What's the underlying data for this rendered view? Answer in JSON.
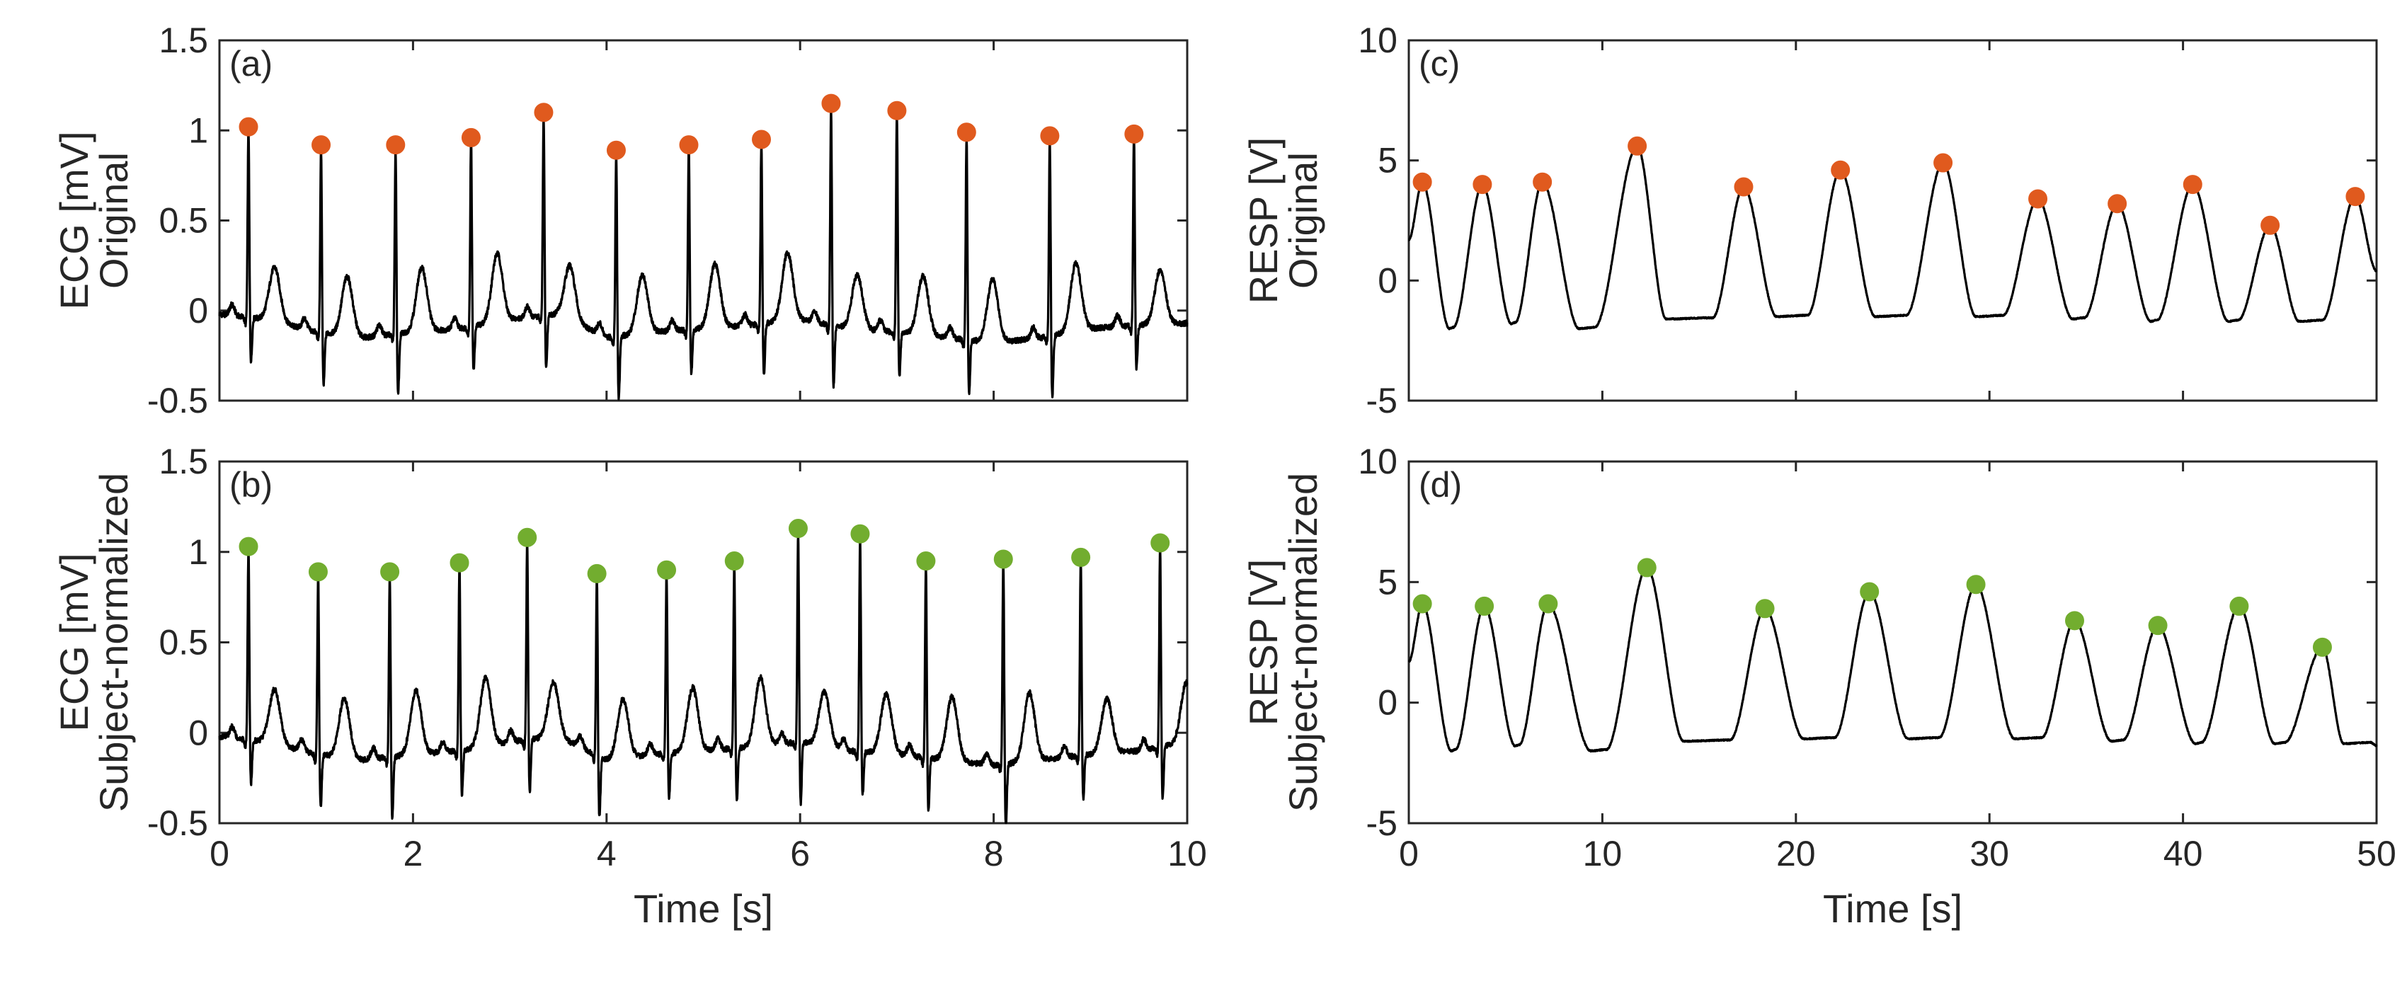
{
  "chart_data": [
    {
      "id": "a",
      "type": "line",
      "panel_label": "(a)",
      "ylabel_lines": [
        "ECG [mV]",
        "Original"
      ],
      "xlabel": "",
      "xlim": [
        0,
        10
      ],
      "ylim": [
        -0.5,
        1.5
      ],
      "xticks": [
        0,
        2,
        4,
        6,
        8,
        10
      ],
      "xtick_labels": [],
      "yticks": [
        -0.5,
        0,
        0.5,
        1,
        1.5
      ],
      "ytick_labels": [
        "-0.5",
        "0",
        "0.5",
        "1",
        "1.5"
      ],
      "signal": "ecg",
      "baseline": [
        [
          0,
          -0.02
        ],
        [
          0.5,
          -0.05
        ],
        [
          1.0,
          -0.12
        ],
        [
          1.5,
          -0.15
        ],
        [
          2.0,
          -0.12
        ],
        [
          2.5,
          -0.1
        ],
        [
          3.0,
          -0.05
        ],
        [
          3.5,
          -0.02
        ],
        [
          4.0,
          -0.15
        ],
        [
          4.5,
          -0.12
        ],
        [
          5.0,
          -0.1
        ],
        [
          5.5,
          -0.08
        ],
        [
          6.0,
          -0.05
        ],
        [
          6.5,
          -0.1
        ],
        [
          7.0,
          -0.12
        ],
        [
          7.5,
          -0.15
        ],
        [
          8.0,
          -0.18
        ],
        [
          8.5,
          -0.15
        ],
        [
          9.0,
          -0.1
        ],
        [
          9.5,
          -0.08
        ],
        [
          10.0,
          -0.07
        ]
      ],
      "peaks": {
        "color": "#e05a1e",
        "x": [
          0.3,
          1.05,
          1.82,
          2.6,
          3.35,
          4.1,
          4.85,
          5.6,
          6.32,
          7.0,
          7.72,
          8.58,
          9.45
        ],
        "y": [
          1.02,
          0.92,
          0.92,
          0.96,
          1.1,
          0.89,
          0.92,
          0.95,
          1.15,
          1.11,
          0.99,
          0.97,
          0.98
        ]
      }
    },
    {
      "id": "b",
      "type": "line",
      "panel_label": "(b)",
      "ylabel_lines": [
        "ECG [mV]",
        "Subject-normalized"
      ],
      "xlabel": "Time [s]",
      "xlim": [
        0,
        10
      ],
      "ylim": [
        -0.5,
        1.5
      ],
      "xticks": [
        0,
        2,
        4,
        6,
        8,
        10
      ],
      "xtick_labels": [
        "0",
        "2",
        "4",
        "6",
        "8",
        "10"
      ],
      "yticks": [
        -0.5,
        0,
        0.5,
        1,
        1.5
      ],
      "ytick_labels": [
        "-0.5",
        "0",
        "0.5",
        "1",
        "1.5"
      ],
      "signal": "ecg",
      "baseline": [
        [
          0,
          -0.02
        ],
        [
          0.5,
          -0.05
        ],
        [
          1.0,
          -0.12
        ],
        [
          1.5,
          -0.15
        ],
        [
          2.0,
          -0.12
        ],
        [
          2.5,
          -0.1
        ],
        [
          3.0,
          -0.05
        ],
        [
          3.5,
          -0.02
        ],
        [
          4.0,
          -0.15
        ],
        [
          4.5,
          -0.12
        ],
        [
          5.0,
          -0.1
        ],
        [
          5.5,
          -0.08
        ],
        [
          6.0,
          -0.05
        ],
        [
          6.5,
          -0.1
        ],
        [
          7.0,
          -0.12
        ],
        [
          7.5,
          -0.15
        ],
        [
          8.0,
          -0.18
        ],
        [
          8.5,
          -0.15
        ],
        [
          9.0,
          -0.12
        ],
        [
          9.5,
          -0.1
        ],
        [
          10.0,
          -0.05
        ]
      ],
      "peaks": {
        "color": "#72ad2f",
        "x": [
          0.3,
          1.02,
          1.76,
          2.48,
          3.18,
          3.9,
          4.62,
          5.32,
          5.98,
          6.62,
          7.3,
          8.1,
          8.9,
          9.72
        ],
        "y": [
          1.03,
          0.89,
          0.89,
          0.94,
          1.08,
          0.88,
          0.9,
          0.95,
          1.13,
          1.1,
          0.95,
          0.96,
          0.97,
          1.05
        ]
      }
    },
    {
      "id": "c",
      "type": "line",
      "panel_label": "(c)",
      "ylabel_lines": [
        "RESP [V]",
        "Original"
      ],
      "xlabel": "",
      "xlim": [
        0,
        50
      ],
      "ylim": [
        -5,
        10
      ],
      "xticks": [
        0,
        10,
        20,
        30,
        40,
        50
      ],
      "xtick_labels": [],
      "yticks": [
        -5,
        0,
        5,
        10
      ],
      "ytick_labels": [
        "-5",
        "0",
        "5",
        "10"
      ],
      "signal": "resp",
      "start_value": 1.7,
      "end_value": 0.4,
      "peaks": {
        "color": "#e05a1e",
        "x": [
          0.7,
          3.8,
          6.9,
          11.8,
          17.3,
          22.3,
          27.6,
          32.5,
          36.6,
          40.5,
          44.5,
          48.9
        ],
        "y": [
          4.1,
          4.0,
          4.1,
          5.6,
          3.9,
          4.6,
          4.9,
          3.4,
          3.2,
          4.0,
          2.3,
          3.5
        ]
      },
      "troughs": {
        "x": [
          2.2,
          5.4,
          9.2,
          14.5,
          19.8,
          24.9,
          30.0,
          34.6,
          38.5,
          42.6,
          46.6
        ],
        "y": [
          -2.0,
          -1.8,
          -2.0,
          -1.6,
          -1.5,
          -1.5,
          -1.5,
          -1.6,
          -1.7,
          -1.7,
          -1.7
        ],
        "flat_width": [
          0.2,
          0.2,
          0.8,
          2.4,
          1.6,
          1.6,
          1.4,
          0.6,
          0.3,
          0.5,
          1.2
        ]
      }
    },
    {
      "id": "d",
      "type": "line",
      "panel_label": "(d)",
      "ylabel_lines": [
        "RESP [V]",
        "Subject-normalized"
      ],
      "xlabel": "Time [s]",
      "xlim": [
        0,
        50
      ],
      "ylim": [
        -5,
        10
      ],
      "xticks": [
        0,
        10,
        20,
        30,
        40,
        50
      ],
      "xtick_labels": [
        "0",
        "10",
        "20",
        "30",
        "40",
        "50"
      ],
      "yticks": [
        -5,
        0,
        5,
        10
      ],
      "ytick_labels": [
        "-5",
        "0",
        "5",
        "10"
      ],
      "signal": "resp",
      "start_value": 1.7,
      "end_value": -1.8,
      "peaks": {
        "color": "#72ad2f",
        "x": [
          0.7,
          3.9,
          7.2,
          12.3,
          18.4,
          23.8,
          29.3,
          34.4,
          38.7,
          42.9,
          47.2
        ],
        "y": [
          4.1,
          4.0,
          4.1,
          5.6,
          3.9,
          4.6,
          4.9,
          3.4,
          3.2,
          4.0,
          2.3
        ]
      },
      "troughs": {
        "x": [
          2.3,
          5.6,
          9.8,
          15.4,
          21.2,
          26.6,
          32.0,
          36.6,
          40.8,
          45.0,
          49.0
        ],
        "y": [
          -2.0,
          -1.8,
          -2.0,
          -1.6,
          -1.5,
          -1.5,
          -1.5,
          -1.6,
          -1.7,
          -1.7,
          -1.7
        ],
        "flat_width": [
          0.2,
          0.2,
          0.8,
          2.4,
          1.6,
          1.6,
          1.4,
          0.6,
          0.3,
          0.5,
          1.4
        ]
      }
    }
  ]
}
